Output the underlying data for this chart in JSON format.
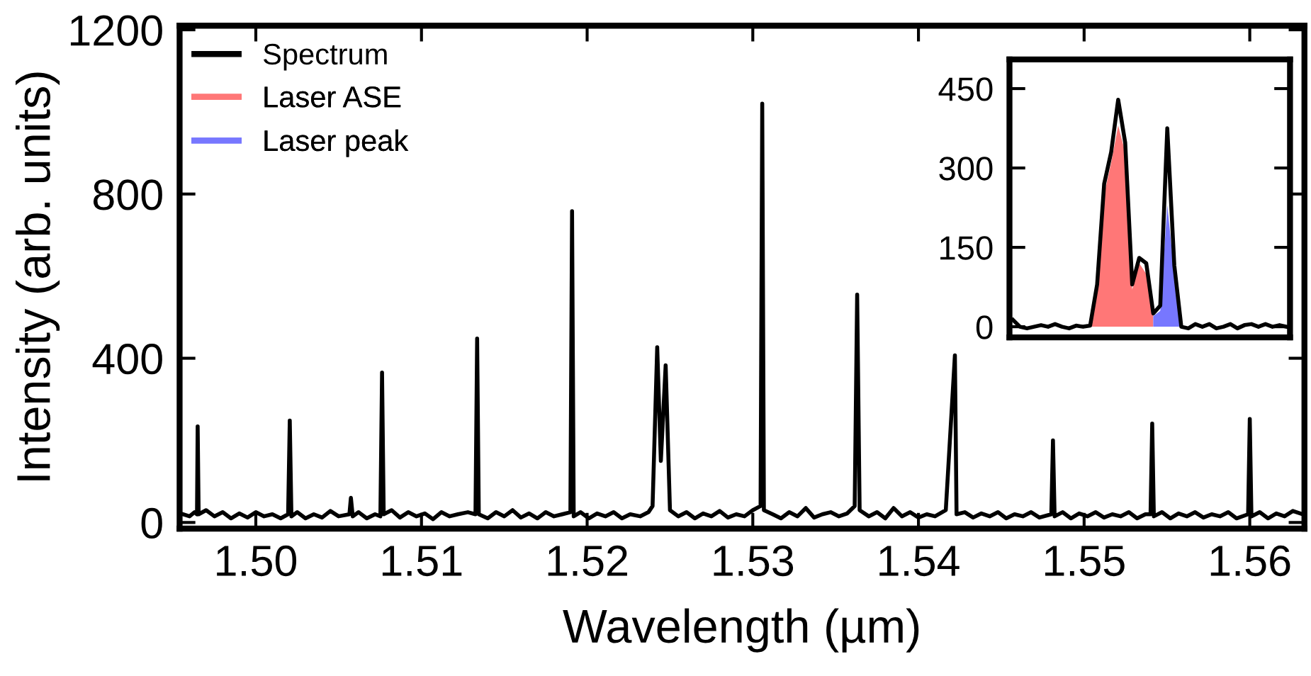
{
  "chart_data": [
    {
      "type": "line",
      "xlabel": "Wavelength (µm)",
      "ylabel": "Intensity (arb. units)",
      "xlim": [
        1.4954,
        1.5633
      ],
      "xticks": [
        {
          "value": 1.5,
          "label": "1.50"
        },
        1.51,
        1.52,
        1.53,
        1.54,
        1.55,
        1.56
      ],
      "ylim": [
        -15,
        1210
      ],
      "yticks": [
        0,
        400,
        800,
        1200
      ],
      "grid": false,
      "legend": "top left",
      "series": [
        {
          "name": "Spectrum",
          "color": "#000000",
          "x": [
            1.4956,
            1.496,
            1.4963,
            1.49645,
            1.49649,
            1.49655,
            1.497,
            1.4975,
            1.498,
            1.4985,
            1.499,
            1.4995,
            1.5,
            1.5005,
            1.501,
            1.5015,
            1.50195,
            1.50205,
            1.50215,
            1.5025,
            1.503,
            1.5035,
            1.504,
            1.5045,
            1.505,
            1.50565,
            1.50574,
            1.50585,
            1.5062,
            1.5067,
            1.5072,
            1.50752,
            1.50762,
            1.50772,
            1.5082,
            1.5087,
            1.5092,
            1.5097,
            1.5102,
            1.5107,
            1.5112,
            1.5117,
            1.5122,
            1.5128,
            1.51326,
            1.51336,
            1.51346,
            1.514,
            1.5145,
            1.515,
            1.5155,
            1.516,
            1.5165,
            1.517,
            1.5175,
            1.518,
            1.5185,
            1.51899,
            1.51909,
            1.51919,
            1.5196,
            1.5201,
            1.5206,
            1.5211,
            1.5216,
            1.5221,
            1.5226,
            1.5232,
            1.5237,
            1.52395,
            1.52423,
            1.52445,
            1.52474,
            1.525,
            1.5255,
            1.526,
            1.5265,
            1.527,
            1.5275,
            1.528,
            1.5285,
            1.529,
            1.5295,
            1.53,
            1.53047,
            1.53057,
            1.53067,
            1.5312,
            1.5317,
            1.5322,
            1.5327,
            1.5332,
            1.5337,
            1.5342,
            1.5347,
            1.5352,
            1.5357,
            1.53615,
            1.5363,
            1.53645,
            1.537,
            1.5375,
            1.538,
            1.5385,
            1.539,
            1.5395,
            1.54,
            1.5405,
            1.541,
            1.54165,
            1.5422,
            1.5423,
            1.5428,
            1.5433,
            1.5438,
            1.5443,
            1.5448,
            1.5453,
            1.5458,
            1.5463,
            1.5468,
            1.5473,
            1.54802,
            1.54812,
            1.54822,
            1.5487,
            1.5492,
            1.5497,
            1.5502,
            1.5507,
            1.5512,
            1.5517,
            1.5522,
            1.5527,
            1.5532,
            1.5537,
            1.55401,
            1.55411,
            1.55421,
            1.5547,
            1.5552,
            1.5557,
            1.5562,
            1.5567,
            1.5572,
            1.5577,
            1.5582,
            1.5587,
            1.5592,
            1.5599,
            1.56,
            1.5601,
            1.5606,
            1.5611,
            1.5616,
            1.5621,
            1.5626,
            1.5632
          ],
          "values": [
            20,
            15,
            25,
            20,
            234,
            20,
            30,
            15,
            25,
            10,
            22,
            12,
            25,
            15,
            20,
            10,
            20,
            248,
            15,
            25,
            10,
            20,
            12,
            28,
            15,
            20,
            60,
            15,
            25,
            10,
            20,
            15,
            365,
            20,
            30,
            12,
            25,
            15,
            22,
            8,
            25,
            15,
            20,
            25,
            20,
            448,
            20,
            10,
            25,
            15,
            30,
            12,
            22,
            10,
            25,
            15,
            20,
            25,
            758,
            15,
            25,
            10,
            22,
            15,
            25,
            10,
            20,
            15,
            25,
            40,
            427,
            150,
            383,
            30,
            15,
            25,
            10,
            22,
            15,
            28,
            12,
            20,
            15,
            30,
            40,
            1020,
            30,
            20,
            10,
            25,
            15,
            35,
            12,
            20,
            25,
            15,
            22,
            40,
            555,
            30,
            15,
            25,
            10,
            35,
            15,
            25,
            12,
            20,
            15,
            30,
            407,
            20,
            25,
            12,
            22,
            15,
            25,
            10,
            20,
            15,
            25,
            12,
            20,
            200,
            15,
            25,
            10,
            22,
            15,
            25,
            12,
            20,
            15,
            25,
            10,
            20,
            20,
            241,
            15,
            25,
            10,
            22,
            15,
            25,
            12,
            20,
            15,
            25,
            10,
            20,
            252,
            15,
            25,
            10,
            22,
            15,
            28,
            20
          ]
        }
      ]
    },
    {
      "type": "line",
      "categories": [
        null,
        null,
        null,
        null,
        null,
        null,
        null,
        null,
        null,
        null,
        null,
        null,
        null,
        null,
        null,
        null,
        null,
        null,
        null,
        null,
        null,
        null,
        null,
        null,
        null,
        null,
        null,
        null,
        null,
        null,
        null,
        null,
        null,
        null,
        null,
        null,
        null,
        null,
        null,
        null
      ],
      "ylim": [
        -20,
        505
      ],
      "yticks": [
        0,
        150,
        300,
        450
      ],
      "grid": false,
      "tick_labels": "y",
      "legend": "top left",
      "series": [
        {
          "name": "Laser ASE",
          "type": "area",
          "color": "#ff7777",
          "values": [
            null,
            null,
            null,
            null,
            null,
            null,
            null,
            null,
            null,
            null,
            null,
            0,
            70,
            250,
            310,
            380,
            330,
            70,
            120,
            100,
            20,
            null,
            null,
            null,
            null,
            null,
            null,
            null,
            null,
            null,
            null,
            null,
            null,
            null,
            null,
            null,
            null,
            null,
            null,
            null
          ]
        },
        {
          "name": "Laser peak",
          "type": "area",
          "color": "#7777ff",
          "values": [
            null,
            null,
            null,
            null,
            null,
            null,
            null,
            null,
            null,
            null,
            null,
            null,
            null,
            null,
            null,
            null,
            null,
            null,
            null,
            null,
            20,
            30,
            230,
            100,
            0,
            null,
            null,
            null,
            null,
            null,
            null,
            null,
            null,
            null,
            null,
            null,
            null,
            null,
            null,
            null
          ]
        },
        {
          "color": "#000000",
          "values": [
            13,
            0,
            -3,
            0,
            3,
            0,
            5,
            0,
            -3,
            2,
            0,
            2,
            80,
            270,
            330,
            429,
            348,
            80,
            130,
            120,
            25,
            40,
            375,
            116,
            0,
            -3,
            5,
            0,
            5,
            -3,
            0,
            5,
            -3,
            3,
            5,
            0,
            5,
            0,
            3,
            0
          ]
        }
      ]
    }
  ]
}
